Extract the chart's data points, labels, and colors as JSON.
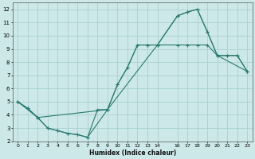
{
  "xlabel": "Humidex (Indice chaleur)",
  "background_color": "#cce8e8",
  "grid_color": "#aad0d0",
  "line_color": "#2a7a70",
  "xlim": [
    -0.5,
    23.5
  ],
  "ylim": [
    2,
    12.5
  ],
  "xticks": [
    0,
    1,
    2,
    3,
    4,
    5,
    6,
    7,
    8,
    9,
    10,
    11,
    12,
    13,
    14,
    16,
    17,
    18,
    19,
    20,
    21,
    22,
    23
  ],
  "yticks": [
    2,
    3,
    4,
    5,
    6,
    7,
    8,
    9,
    10,
    11,
    12
  ],
  "line1_x": [
    0,
    1,
    2,
    3,
    4,
    5,
    6,
    7,
    9,
    10,
    11,
    12,
    13,
    14,
    16,
    17,
    18,
    19,
    20,
    21,
    22,
    23
  ],
  "line1_y": [
    5,
    4.5,
    3.8,
    3,
    2.8,
    2.6,
    2.5,
    2.3,
    4.4,
    6.3,
    7.6,
    9.3,
    9.3,
    9.3,
    9.3,
    9.3,
    9.3,
    9.3,
    8.5,
    8.5,
    8.5,
    7.3
  ],
  "line2_x": [
    0,
    1,
    2,
    3,
    4,
    5,
    6,
    7,
    8,
    9,
    10,
    11,
    12,
    13,
    14,
    16,
    17,
    18,
    19,
    20,
    21,
    22,
    23
  ],
  "line2_y": [
    5,
    4.5,
    3.8,
    3,
    2.8,
    2.6,
    2.5,
    2.3,
    4.4,
    4.4,
    6.3,
    7.6,
    9.3,
    9.3,
    9.3,
    11.5,
    11.8,
    12.0,
    10.3,
    8.5,
    8.5,
    8.5,
    7.3
  ],
  "line3_x": [
    0,
    2,
    9,
    14,
    16,
    17,
    18,
    19,
    20,
    23
  ],
  "line3_y": [
    5,
    3.8,
    4.4,
    9.3,
    11.5,
    11.8,
    12.0,
    10.3,
    8.5,
    7.3
  ]
}
